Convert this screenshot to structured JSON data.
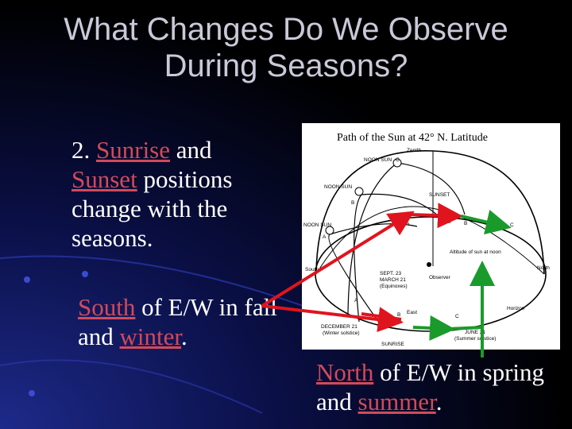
{
  "title_line1": "What Changes Do We Observe",
  "title_line2": "During Seasons?",
  "point2": {
    "num": "2. ",
    "w1": "Sunrise",
    "mid": " and ",
    "w2": "Sunset",
    "rest": " positions change with the seasons."
  },
  "south_note": {
    "w1": "South",
    "mid": " of E/W in fall and ",
    "w2": "winter",
    "end": "."
  },
  "north_note": {
    "w1": "North",
    "mid": " of E/W in spring and ",
    "w2": "summer",
    "end": "."
  },
  "diagram": {
    "title": "Path of the Sun at 42° N. Latitude",
    "labels": {
      "zenith": "Zenith",
      "noon_c": "NOON SUN",
      "noon_b": "NOON SUN",
      "noon_a": "NOON SUN",
      "c_top": "C",
      "b_left": "B",
      "a_left": "A",
      "sunset": "SUNSET",
      "west": "West",
      "a_mid": "A",
      "b_mid": "B",
      "c_right": "C",
      "south": "South",
      "north": "North",
      "altitude": "Altitude of sun at noon",
      "sept": "SEPT. 23",
      "march": "MARCH 21",
      "equinox": "(Equinoxes)",
      "observer": "Observer",
      "a_low": "A",
      "b_low": "B",
      "c_low": "C",
      "east": "East",
      "horizon": "Horizon",
      "dec": "DECEMBER 21",
      "winter_solstice": "(Winter solstice)",
      "sunrise": "SUNRISE",
      "june": "JUNE 21",
      "summer_solstice": "(Summer solstice)"
    }
  },
  "colors": {
    "highlight": "#d24a5a",
    "arrow_red": "#e0141e",
    "arrow_green": "#1a9a2a"
  }
}
